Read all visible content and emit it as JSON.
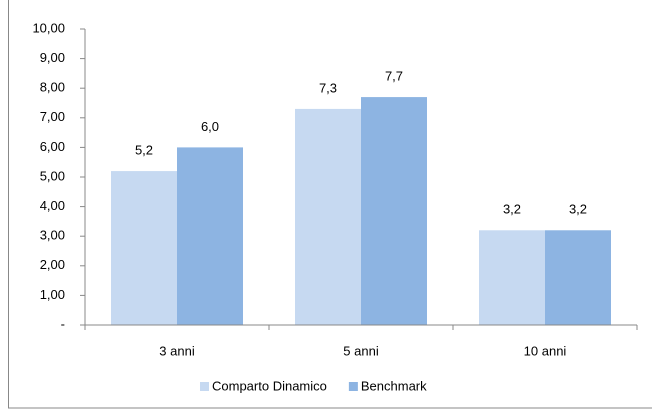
{
  "chart_data": {
    "type": "bar",
    "categories": [
      "3 anni",
      "5 anni",
      "10 anni"
    ],
    "series": [
      {
        "name": "Comparto Dinamico",
        "color": "#c6d9f1",
        "values": [
          5.2,
          7.3,
          3.2
        ],
        "value_labels": [
          "5,2",
          "7,3",
          "3,2"
        ]
      },
      {
        "name": "Benchmark",
        "color": "#8db4e2",
        "values": [
          6.0,
          7.7,
          3.2
        ],
        "value_labels": [
          "6,0",
          "7,7",
          "3,2"
        ]
      }
    ],
    "ylim": [
      0,
      10
    ],
    "yticks": [
      {
        "value": 0,
        "label": "-"
      },
      {
        "value": 1,
        "label": "1,00"
      },
      {
        "value": 2,
        "label": "2,00"
      },
      {
        "value": 3,
        "label": "3,00"
      },
      {
        "value": 4,
        "label": "4,00"
      },
      {
        "value": 5,
        "label": "5,00"
      },
      {
        "value": 6,
        "label": "6,00"
      },
      {
        "value": 7,
        "label": "7,00"
      },
      {
        "value": 8,
        "label": "8,00"
      },
      {
        "value": 9,
        "label": "9,00"
      },
      {
        "value": 10,
        "label": "10,00"
      }
    ],
    "legend": "bottom"
  }
}
